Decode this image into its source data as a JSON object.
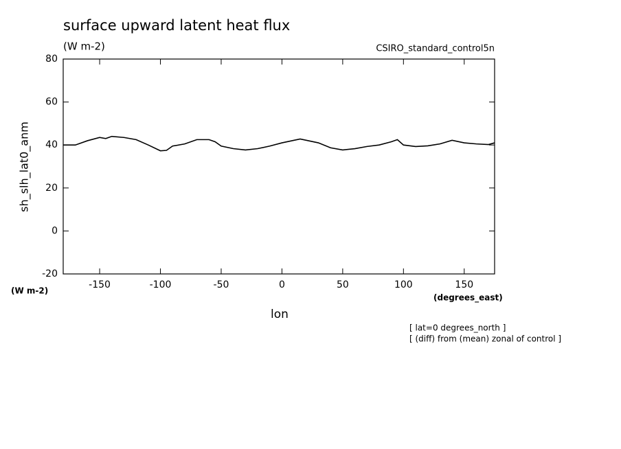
{
  "chart_data": {
    "type": "line",
    "title": "surface upward latent heat flux",
    "units": "(W m-2)",
    "dataset": "CSIRO_standard_control5n",
    "y_label": "sh_slh_lat0_anm",
    "y_units": "(W m-2)",
    "x_units": "(degrees_east)",
    "x_label": "lon",
    "notes": [
      "[ lat=0 degrees_north ]",
      "[ (diff) from (mean) zonal of control ]"
    ],
    "x": [
      -180,
      -170,
      -160,
      -150,
      -145,
      -140,
      -130,
      -120,
      -110,
      -100,
      -95,
      -90,
      -80,
      -70,
      -60,
      -55,
      -50,
      -40,
      -30,
      -20,
      -10,
      0,
      10,
      15,
      20,
      30,
      40,
      50,
      60,
      70,
      80,
      90,
      95,
      100,
      110,
      120,
      130,
      140,
      150,
      160,
      170,
      175
    ],
    "series": [
      {
        "color": "#000000",
        "values": [
          40,
          40,
          42,
          43.5,
          43,
          44,
          43.5,
          42.5,
          40,
          37.3,
          37.5,
          39.5,
          40.5,
          42.5,
          42.5,
          41.5,
          39.5,
          38.3,
          37.7,
          38.3,
          39.5,
          41,
          42.2,
          42.8,
          42.2,
          41,
          38.7,
          37.7,
          38.3,
          39.3,
          40,
          41.5,
          42.5,
          40,
          39.3,
          39.6,
          40.5,
          42.2,
          41,
          40.5,
          40.2,
          41
        ]
      }
    ],
    "xlim": [
      -180,
      175
    ],
    "xticks": [
      -150,
      -100,
      -50,
      0,
      50,
      100,
      150
    ],
    "ylim": [
      -20,
      80
    ],
    "yticks": [
      -20,
      0,
      20,
      40,
      60,
      80
    ]
  }
}
